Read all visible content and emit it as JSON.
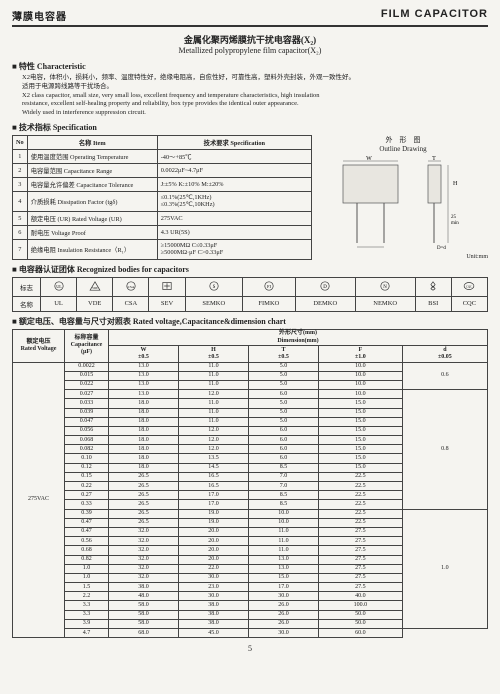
{
  "header": {
    "left": "薄膜电容器",
    "right": "FILM CAPACITOR"
  },
  "title": {
    "cn": "金属化聚丙烯膜抗干扰电容器(X₂)",
    "en": "Metallized polypropylene film capacitor(X₂)"
  },
  "sections": {
    "char": "特性  Characteristic",
    "spec": "技术指标  Specification",
    "bodies": "电容器认证团体  Recognized bodies for capacitors",
    "dim": "额定电压、电容量与尺寸对照表  Rated voltage,Capacitance&dimension chart"
  },
  "char_lines": [
    "X2电容，体积小，损耗小，频率、温度特性好，绝缘电阻高，自愈性好，可靠性高，塑料外壳封装，外观一致性好。",
    "适用于电源跨线路等干扰场合。",
    "X2 class capacitor, small size, very small loss, excellent frequency and temperature characteristics, high insulation",
    "resistance, excellent self-healing property and reliability, box type provides the identical outer appearance.",
    "Widely used in interference suppression circuit."
  ],
  "spec_headers": {
    "no": "No",
    "item": "名称  Item",
    "req": "技术要求  Specification"
  },
  "spec_rows": [
    {
      "no": "1",
      "item": "使用温度范围 Operating Temperature",
      "req": "-40～+85℃"
    },
    {
      "no": "2",
      "item": "电容量范围 Capacitance Range",
      "req": "0.0022μF~4.7μF"
    },
    {
      "no": "3",
      "item": "电容量允许偏差 Capacitance Tolerance",
      "req": "J:±5%  K:±10%  M:±20%"
    },
    {
      "no": "4",
      "item": "介质损耗 Dissipation Factor (tgδ)",
      "req": "≤0.1%(25℃,1KHz)\n≤0.3%(25℃,10KHz)"
    },
    {
      "no": "5",
      "item": "额定电压 (UR)  Rated Voltage (UR)",
      "req": "275VAC"
    },
    {
      "no": "6",
      "item": "耐电压 Voltage Proof",
      "req": "4.3 UR(5S)"
    },
    {
      "no": "7",
      "item": "绝缘电阻  Insulation Resistance（R₁）",
      "req": "≥15000MΩ       C≤0.33μF\n≥5000MΩ·μF   C>0.33μF"
    }
  ],
  "drawing": {
    "title_cn": "外　形　图",
    "title_en": "Outline Drawing",
    "unit": "Unit:mm",
    "labels": {
      "W": "W",
      "H": "H",
      "T": "T",
      "F": "F",
      "d": "D=d",
      "lead": "25\nmin"
    },
    "colors": {
      "stroke": "#555",
      "fill": "#e8e6e0"
    }
  },
  "bodies": {
    "row_labels": {
      "mark": "标志",
      "name": "名称"
    },
    "columns": [
      {
        "name": "UL",
        "logo": "ul"
      },
      {
        "name": "VDE",
        "logo": "vde"
      },
      {
        "name": "CSA",
        "logo": "csa"
      },
      {
        "name": "SEV",
        "logo": "sev"
      },
      {
        "name": "SEMKO",
        "logo": "s"
      },
      {
        "name": "FIMKO",
        "logo": "f"
      },
      {
        "name": "DEMKO",
        "logo": "d"
      },
      {
        "name": "NEMKO",
        "logo": "n"
      },
      {
        "name": "BSI",
        "logo": "bsi"
      },
      {
        "name": "CQC",
        "logo": "cqc"
      }
    ]
  },
  "dim": {
    "head": {
      "rv": "额定电压\nRated Voltage",
      "cap": "标称容量\nCapacitance\n(μF)",
      "group": "外形尺寸(mm)\nDimension(mm)",
      "cols": [
        {
          "sym": "W",
          "tol": "±0.5"
        },
        {
          "sym": "H",
          "tol": "±0.5"
        },
        {
          "sym": "T",
          "tol": "±0.5"
        },
        {
          "sym": "F",
          "tol": "±1.0"
        },
        {
          "sym": "d",
          "tol": "±0.05"
        }
      ]
    },
    "rated": "275VAC",
    "rows": [
      [
        "0.0022",
        "13.0",
        "11.0",
        "5.0",
        "10.0",
        null
      ],
      [
        "0.015",
        "13.0",
        "11.0",
        "5.0",
        "10.0",
        null
      ],
      [
        "0.022",
        "13.0",
        "11.0",
        "5.0",
        "10.0",
        "0.6"
      ],
      [
        "0.027",
        "13.0",
        "12.0",
        "6.0",
        "10.0",
        null
      ],
      [
        "0.033",
        "18.0",
        "11.0",
        "5.0",
        "15.0",
        null
      ],
      [
        "0.039",
        "18.0",
        "11.0",
        "5.0",
        "15.0",
        null
      ],
      [
        "0.047",
        "18.0",
        "11.0",
        "5.0",
        "15.0",
        null
      ],
      [
        "0.056",
        "18.0",
        "12.0",
        "6.0",
        "15.0",
        null
      ],
      [
        "0.068",
        "18.0",
        "12.0",
        "6.0",
        "15.0",
        null
      ],
      [
        "0.082",
        "18.0",
        "12.0",
        "6.0",
        "15.0",
        null
      ],
      [
        "0.10",
        "18.0",
        "13.5",
        "6.0",
        "15.0",
        null
      ],
      [
        "0.12",
        "18.0",
        "14.5",
        "8.5",
        "15.0",
        null
      ],
      [
        "0.15",
        "26.5",
        "16.5",
        "7.0",
        "22.5",
        null
      ],
      [
        "0.22",
        "26.5",
        "16.5",
        "7.0",
        "22.5",
        null
      ],
      [
        "0.27",
        "26.5",
        "17.0",
        "8.5",
        "22.5",
        null
      ],
      [
        "0.33",
        "26.5",
        "17.0",
        "8.5",
        "22.5",
        "0.8"
      ],
      [
        "0.39",
        "26.5",
        "19.0",
        "10.0",
        "22.5",
        null
      ],
      [
        "0.47",
        "26.5",
        "19.0",
        "10.0",
        "22.5",
        null
      ],
      [
        "0.47",
        "32.0",
        "20.0",
        "11.0",
        "27.5",
        null
      ],
      [
        "0.56",
        "32.0",
        "20.0",
        "11.0",
        "27.5",
        null
      ],
      [
        "0.68",
        "32.0",
        "20.0",
        "11.0",
        "27.5",
        null
      ],
      [
        "0.82",
        "32.0",
        "20.0",
        "13.0",
        "27.5",
        null
      ],
      [
        "1.0",
        "32.0",
        "22.0",
        "13.0",
        "27.5",
        null
      ],
      [
        "1.0",
        "32.0",
        "30.0",
        "15.0",
        "27.5",
        null
      ],
      [
        "1.5",
        "38.0",
        "23.0",
        "17.0",
        "27.5",
        null
      ],
      [
        "2.2",
        "48.0",
        "30.0",
        "30.0",
        "40.0",
        null
      ],
      [
        "3.3",
        "58.0",
        "38.0",
        "26.0",
        "100.0",
        null
      ],
      [
        "3.3",
        "58.0",
        "38.0",
        "26.0",
        "50.0",
        null
      ],
      [
        "3.9",
        "58.0",
        "38.0",
        "26.0",
        "50.0",
        "1.0"
      ],
      [
        "4.7",
        "68.0",
        "45.0",
        "30.0",
        "60.0",
        null
      ]
    ]
  },
  "footer": "5"
}
